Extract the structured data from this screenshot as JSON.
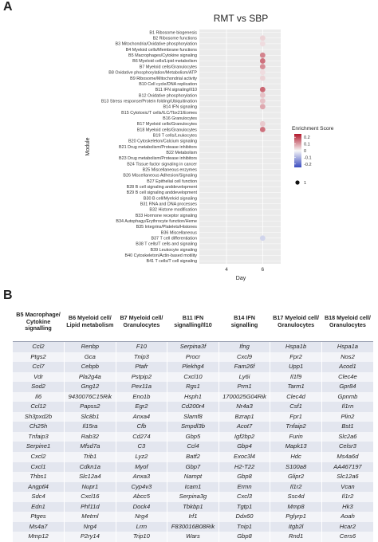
{
  "figure": {
    "panel_a_letter": "A",
    "panel_b_letter": "B"
  },
  "chart_data": {
    "type": "scatter",
    "title": "RMT vs SBP",
    "xlabel": "Day",
    "ylabel": "Module",
    "x_ticks": [
      4,
      6
    ],
    "x_range": [
      2.5,
      7
    ],
    "grid": true,
    "legend_placement": "right",
    "colorbar": {
      "title": "Enrichment Score",
      "ticks": [
        0.2,
        0.1,
        0.0,
        -0.1,
        -0.2
      ],
      "range": [
        -0.25,
        0.25
      ],
      "low_color": "#3b4cc0",
      "mid_color": "#f7f7f7",
      "high_color": "#b2182b"
    },
    "size_legend": {
      "value": 1,
      "label": "1"
    },
    "modules": [
      "B1 Ribosome biogenesis",
      "B2 Ribosome functions",
      "B3 Mitochondria/Oxidative phosphorylation",
      "B4 Myeloid cells/Membrane functions",
      "B5 Macrophages/Cytokine signaling",
      "B6 Myeloid cells/Lipid metabolism",
      "B7 Myeloid cells/Granulocytes",
      "B8 Oxidative phosphorylation/Metabolism/ATP",
      "B9 Ribosome/Mitochondrial activity",
      "B10 Cell cycle/DNA replication",
      "B11 IFN signaling/Il10",
      "B12 Oxidative phosphorylation",
      "B13 Stress response/Protein folding/Ubiquitination",
      "B14 IFN signaling",
      "B15 Cytotoxic/T cells/ILC/Tbx21/Eomes",
      "B16 Granulocytes",
      "B17 Myeloid cells/Granulocytes",
      "B18 Myeloid cells/Granulocytes",
      "B19 T cells/Leukocytes",
      "B20 Cytoskeleton/Calcium signaling",
      "B21 Drug metabolism/Protease inhibitors",
      "B22 Metabolism",
      "B23 Drug metabolism/Protease inhibitors",
      "B24 Tissue factor signaling in cancer",
      "B25 Miscellaneous enzymes",
      "B26 Miscellaneous Adhesion/Signaling",
      "B27 Epithelial cell function",
      "B28 B cell signaling anddevelopment",
      "B29 B cell signaling anddevelopment",
      "B30 B cell/Myeloid signaling",
      "B31 RNA and DNA processes",
      "B32 Histone modification",
      "B33 Hormone receptor signaling",
      "B34 Autophagy/Erythrocyte function/Heme",
      "B35 Integrins/Platelets/Histones",
      "B36 Miscellaneous",
      "B37 T cell differentiation",
      "B38 T cells/T cells and signaling",
      "B39 Leukocyte signaling",
      "B40 Cytoskeleton/Actin-based motility",
      "B41 T cells/T cell signaling"
    ],
    "points": [
      {
        "module": "B2 Ribosome functions",
        "day": 6,
        "score": 0.04
      },
      {
        "module": "B3 Mitochondria/Oxidative phosphorylation",
        "day": 6,
        "score": 0.03
      },
      {
        "module": "B5 Macrophages/Cytokine signaling",
        "day": 6,
        "score": 0.13
      },
      {
        "module": "B6 Myeloid cells/Lipid metabolism",
        "day": 6,
        "score": 0.15
      },
      {
        "module": "B7 Myeloid cells/Granulocytes",
        "day": 6,
        "score": 0.12
      },
      {
        "module": "B8 Oxidative phosphorylation/Metabolism/ATP",
        "day": 6,
        "score": 0.03
      },
      {
        "module": "B9 Ribosome/Mitochondrial activity",
        "day": 6,
        "score": 0.04
      },
      {
        "module": "B11 IFN signaling/Il10",
        "day": 6,
        "score": 0.16
      },
      {
        "module": "B12 Oxidative phosphorylation",
        "day": 6,
        "score": 0.06
      },
      {
        "module": "B13 Stress response/Protein folding/Ubiquitination",
        "day": 6,
        "score": 0.06
      },
      {
        "module": "B14 IFN signaling",
        "day": 6,
        "score": 0.09
      },
      {
        "module": "B17 Myeloid cells/Granulocytes",
        "day": 6,
        "score": 0.05
      },
      {
        "module": "B18 Myeloid cells/Granulocytes",
        "day": 6,
        "score": 0.15
      },
      {
        "module": "B37 T cell differentiation",
        "day": 6,
        "score": -0.05
      }
    ]
  },
  "table": {
    "headers": [
      "B5 Macrophage/ Cytokine signalling",
      "B6 Myeloid cell/ Lipid metabolism",
      "B7 Myeloid cell/ Granulocytes",
      "B11 IFN signalling/Il10",
      "B14 IFN signalling",
      "B17 Myeloid cell/ Granulocytes",
      "B18 Myeloid cell/ Granulocytes"
    ],
    "rows": [
      [
        "Ccl2",
        "Renbp",
        "F10",
        "Serpina3f",
        "Ifng",
        "Hspa1b",
        "Hspa1a"
      ],
      [
        "Ptgs2",
        "Gca",
        "Tnip3",
        "Procr",
        "Cxcl9",
        "Fpr2",
        "Nos2"
      ],
      [
        "Ccl7",
        "Cebpb",
        "Ptafr",
        "Plekhg4",
        "Fam26f",
        "Upp1",
        "Acod1"
      ],
      [
        "Vdr",
        "Pla2g4a",
        "Pstpip2",
        "Cxcl10",
        "Ly6i",
        "Il1f9",
        "Clec4e"
      ],
      [
        "Sod2",
        "Gng12",
        "Pex11a",
        "Rgs1",
        "Prm1",
        "Tarm1",
        "Gpr84"
      ],
      [
        "Il6",
        "9430076C15Rik",
        "Eno1b",
        "Hsph1",
        "1700025G04Rik",
        "Clec4d",
        "Gpnmb"
      ],
      [
        "Ccl12",
        "Papss2",
        "Egr2",
        "Cd200r4",
        "Nr4a3",
        "Csf1",
        "Il1rn"
      ],
      [
        "Sh3pxd2b",
        "Slc8b1",
        "Anxa4",
        "Slamf8",
        "Bzrap1",
        "Fpr1",
        "Plin2"
      ],
      [
        "Ch25h",
        "Il15ra",
        "Cfb",
        "Smpdl3b",
        "Acot7",
        "Tnfaip2",
        "Bst1"
      ],
      [
        "Tnfaip3",
        "Rab32",
        "Cd274",
        "Gbp5",
        "Igf2bp2",
        "Furin",
        "Slc2a6"
      ],
      [
        "Serpine1",
        "Mfsd7a",
        "C3",
        "Ccl4",
        "Gbp4",
        "Mapk13",
        "Celsr3"
      ],
      [
        "Cxcl2",
        "Trib1",
        "Lyz2",
        "Batf2",
        "Exoc3l4",
        "Hdc",
        "Ms4a6d"
      ],
      [
        "Cxcl1",
        "Cdkn1a",
        "Myof",
        "Gbp7",
        "H2-T22",
        "S100a8",
        "AA467197"
      ],
      [
        "Thbs1",
        "Slc12a4",
        "Anxa3",
        "Nampt",
        "Gbp8",
        "Glipr2",
        "Slc12a6"
      ],
      [
        "Angptl4",
        "Nupr1",
        "Cyp4v3",
        "Icam1",
        "Ermn",
        "Il1r2",
        "Vcan"
      ],
      [
        "Sdc4",
        "Cxcl16",
        "Abcc5",
        "Serpina3g",
        "Cxcl3",
        "Ssc4d",
        "Il1r2"
      ],
      [
        "Edn1",
        "Phf11d",
        "Dock4",
        "Tbkbp1",
        "Tgtp1",
        "Mmp8",
        "Hk3"
      ],
      [
        "Ptges",
        "Metrnl",
        "Nrg4",
        "Irf1",
        "Ddx60",
        "Pglyrp1",
        "Aoah"
      ],
      [
        "Ms4a7",
        "Nrg4",
        "Lrrn",
        "F830016B08Rik",
        "Tnip1",
        "Itgb2l",
        "Hcar2"
      ],
      [
        "Mmp12",
        "P2ry14",
        "Trip10",
        "Wars",
        "Gbp8",
        "Rnd1",
        "Cers6"
      ]
    ]
  }
}
